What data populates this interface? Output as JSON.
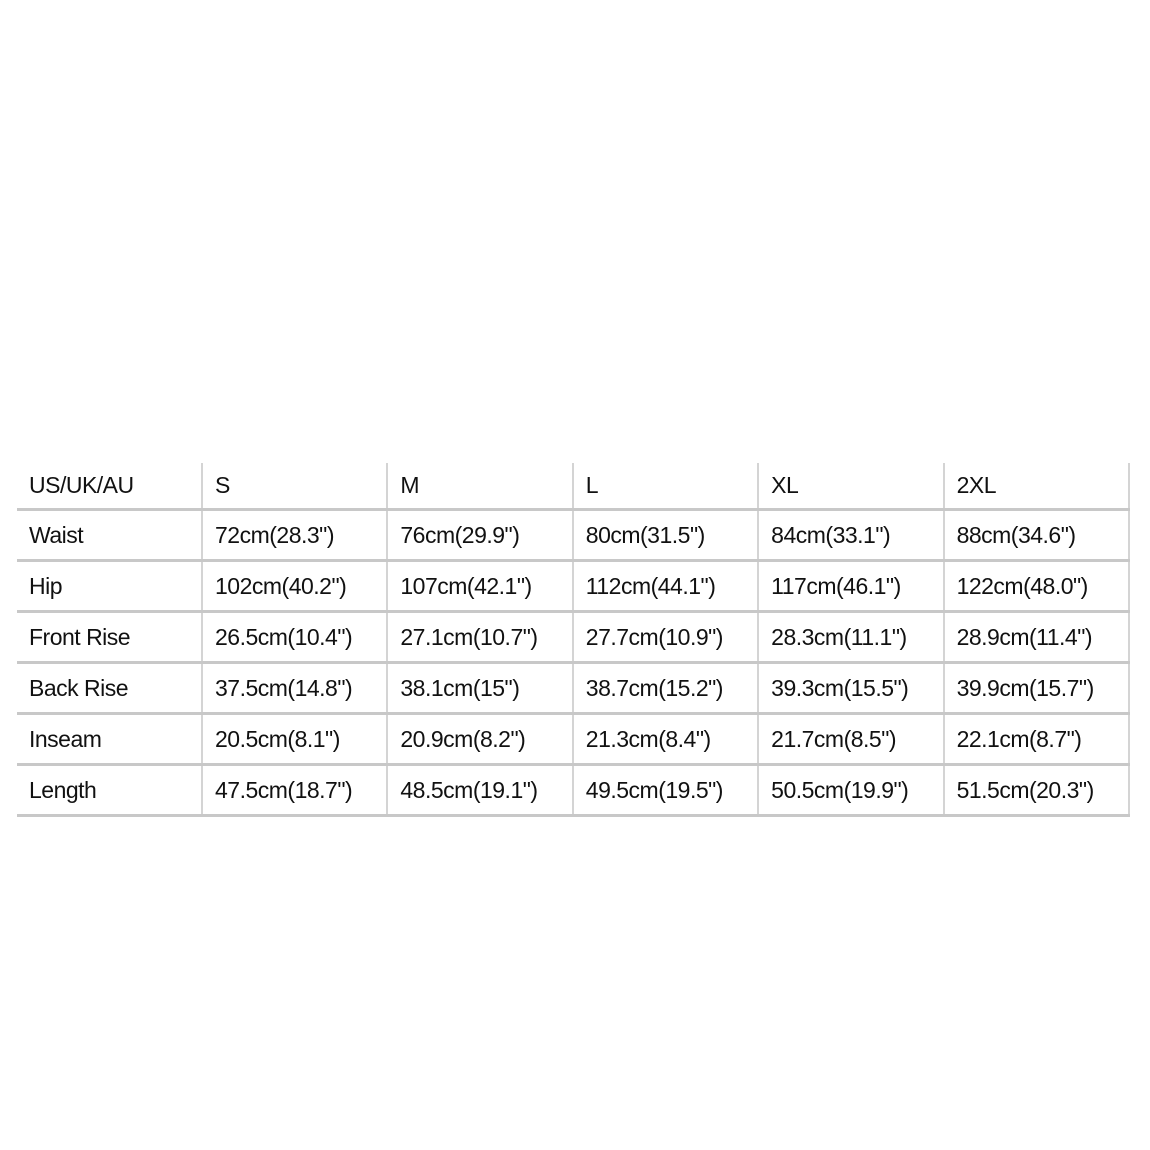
{
  "size_chart": {
    "header": [
      "US/UK/AU",
      "S",
      "M",
      "L",
      "XL",
      "2XL"
    ],
    "rows": [
      {
        "label": "Waist",
        "values": [
          "72cm(28.3\")",
          "76cm(29.9\")",
          "80cm(31.5\")",
          "84cm(33.1\")",
          "88cm(34.6\")"
        ]
      },
      {
        "label": "Hip",
        "values": [
          "102cm(40.2\")",
          "107cm(42.1\")",
          "112cm(44.1\")",
          "117cm(46.1\")",
          "122cm(48.0\")"
        ]
      },
      {
        "label": "Front Rise",
        "values": [
          "26.5cm(10.4\")",
          "27.1cm(10.7\")",
          "27.7cm(10.9\")",
          "28.3cm(11.1\")",
          "28.9cm(11.4\")"
        ]
      },
      {
        "label": "Back Rise",
        "values": [
          "37.5cm(14.8\")",
          "38.1cm(15\")",
          "38.7cm(15.2\")",
          "39.3cm(15.5\")",
          "39.9cm(15.7\")"
        ]
      },
      {
        "label": "Inseam",
        "values": [
          "20.5cm(8.1\")",
          "20.9cm(8.2\")",
          "21.3cm(8.4\")",
          "21.7cm(8.5\")",
          "22.1cm(8.7\")"
        ]
      },
      {
        "label": "Length",
        "values": [
          "47.5cm(18.7\")",
          "48.5cm(19.1\")",
          "49.5cm(19.5\")",
          "50.5cm(19.9\")",
          "51.5cm(20.3\")"
        ]
      }
    ]
  }
}
